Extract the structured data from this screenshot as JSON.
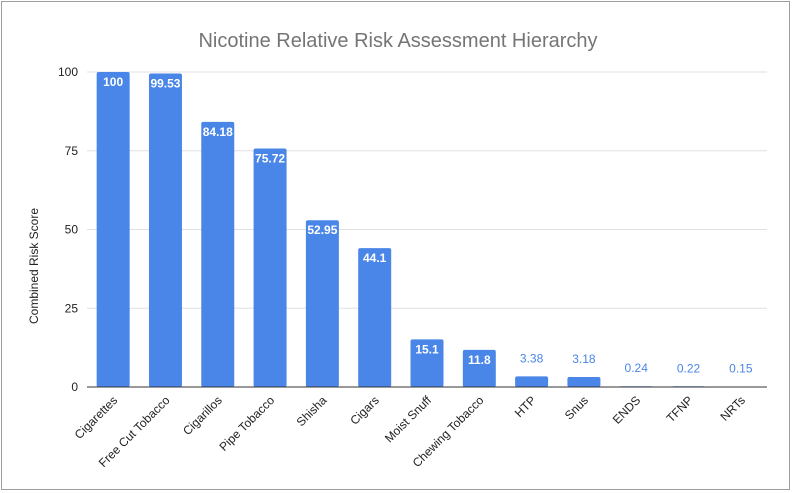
{
  "chart_data": {
    "type": "bar",
    "title": "Nicotine Relative Risk Assessment Hierarchy",
    "xlabel": "",
    "ylabel": "Combined Risk Score",
    "ylim": [
      0,
      100
    ],
    "yticks": [
      0,
      25,
      50,
      75,
      100
    ],
    "grid": true,
    "legend": "none",
    "bar_color": "#4a86e8",
    "categories": [
      "Cigarettes",
      "Free Cut Tobacco",
      "Cigarillos",
      "Pipe Tobacco",
      "Shisha",
      "Cigars",
      "Moist Snuff",
      "Chewing Tobacco",
      "HTP",
      "Snus",
      "ENDS",
      "TFNP",
      "NRTs"
    ],
    "values": [
      100,
      99.53,
      84.18,
      75.72,
      52.95,
      44.1,
      15.1,
      11.8,
      3.38,
      3.18,
      0.24,
      0.22,
      0.15
    ],
    "data_labels": [
      "100",
      "99.53",
      "84.18",
      "75.72",
      "52.95",
      "44.1",
      "15.1",
      "11.8",
      "3.38",
      "3.18",
      "0.24",
      "0.22",
      "0.15"
    ]
  }
}
